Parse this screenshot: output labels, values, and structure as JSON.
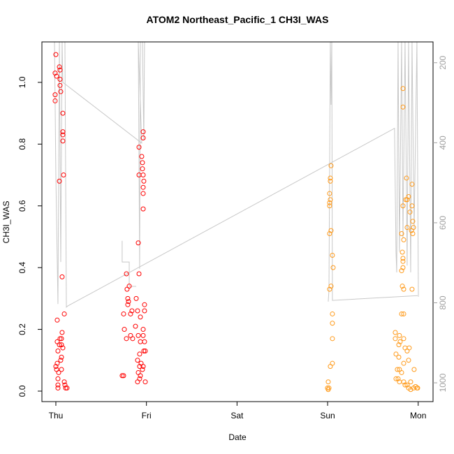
{
  "chart_data": {
    "type": "scatter",
    "title": "ATOM2 Northeast_Pacific_1 CH3I_WAS",
    "x_label": "Date",
    "y_label": "CH3I_WAS",
    "xlim": [
      -0.154,
      4.164
    ],
    "ylim": [
      -0.034,
      1.131
    ],
    "y2lim": [
      1047,
      148
    ],
    "xticks": [
      {
        "value": 0,
        "label": "Thu"
      },
      {
        "value": 1,
        "label": "Fri"
      },
      {
        "value": 2,
        "label": "Sat"
      },
      {
        "value": 3,
        "label": "Sun"
      },
      {
        "value": 4,
        "label": "Mon"
      }
    ],
    "yticks": [
      {
        "value": 0,
        "label": "0.0"
      },
      0.2,
      0.4,
      0.6,
      0.8,
      {
        "value": 1,
        "label": "1.0"
      }
    ],
    "y2ticks": [
      200,
      400,
      600,
      800,
      1000
    ],
    "y2_color": "#a0a0a0",
    "series": [
      {
        "color": "#ff0000",
        "x": [
          0,
          -0.008,
          0.008,
          -0.008,
          -0.008,
          0.039,
          0.046,
          0.046,
          0.046,
          0.054,
          0.077,
          0.077,
          0.077,
          0.077,
          0.039,
          0.085,
          0.069,
          0.093,
          0.015,
          0.015,
          0.046,
          0.062,
          0.069,
          0.039,
          0.062,
          0.077,
          0.023,
          0.062,
          0.054,
          0.015,
          0,
          0.008,
          0.031,
          0.062,
          0.023,
          0.023,
          0.023,
          0.093,
          0.1,
          0.108,
          0.123,
          0.779,
          0.81,
          0.786,
          0.794,
          0.802,
          0.794,
          0.84,
          0.825,
          0.748,
          0.756,
          0.779,
          0.825,
          0.848,
          0.879,
          0.918,
          0.948,
          0.956,
          0.956,
          0.964,
          0.918,
          0.964,
          0.964,
          0.971,
          0.964,
          0.964,
          0.964,
          0.91,
          0.918,
          0.887,
          0.902,
          0.933,
          0.964,
          0.979,
          0.979,
          0.91,
          0.933,
          0.964,
          0.979,
          0.987,
          0.971,
          0.925,
          0.902,
          0.941,
          0.925,
          0.964,
          0.956,
          0.91,
          0.933,
          0.925,
          0.902,
          0.987,
          0.732,
          0.748
        ],
        "values": [
          1.09,
          1.03,
          1.02,
          0.96,
          0.94,
          1.05,
          1.04,
          1.01,
          0.99,
          0.97,
          0.9,
          0.84,
          0.83,
          0.81,
          0.68,
          0.7,
          0.37,
          0.25,
          0.23,
          0.16,
          0.17,
          0.17,
          0.19,
          0.15,
          0.15,
          0.14,
          0.13,
          0.11,
          0.1,
          0.09,
          0.08,
          0.07,
          0.06,
          0.07,
          0.04,
          0.02,
          0.01,
          0.03,
          0.02,
          0.01,
          0.01,
          0.38,
          0.34,
          0.33,
          0.3,
          0.29,
          0.28,
          0.26,
          0.25,
          0.25,
          0.2,
          0.17,
          0.18,
          0.17,
          0.21,
          0.79,
          0.76,
          0.74,
          0.72,
          0.7,
          0.7,
          0.84,
          0.82,
          0.68,
          0.66,
          0.64,
          0.59,
          0.48,
          0.38,
          0.3,
          0.26,
          0.24,
          0.2,
          0.28,
          0.26,
          0.18,
          0.16,
          0.18,
          0.16,
          0.13,
          0.13,
          0.12,
          0.1,
          0.09,
          0.08,
          0.08,
          0.07,
          0.06,
          0.05,
          0.04,
          0.03,
          0.03,
          0.05,
          0.05
        ]
      },
      {
        "color": "#ff9a1a",
        "x": [
          3.038,
          3.03,
          3.03,
          3.022,
          3.03,
          3.022,
          3.022,
          3.038,
          3.022,
          3.053,
          3.061,
          3.038,
          3.022,
          3.053,
          3.053,
          3.053,
          3.053,
          3.03,
          3.007,
          2.999,
          3.007,
          3.015,
          3.832,
          3.832,
          3.871,
          3.932,
          3.894,
          3.863,
          3.878,
          3.832,
          3.909,
          3.932,
          3.94,
          3.948,
          3.925,
          3.94,
          3.817,
          3.878,
          3.84,
          3.825,
          3.832,
          3.832,
          3.832,
          3.817,
          3.825,
          3.84,
          3.932,
          3.817,
          3.84,
          3.747,
          3.793,
          3.747,
          3.801,
          3.786,
          3.84,
          3.878,
          3.855,
          3.901,
          3.894,
          3.84,
          3.786,
          3.755,
          3.77,
          3.793,
          3.817,
          3.755,
          3.778,
          3.793,
          3.84,
          3.878,
          3.917,
          3.955,
          3.855,
          3.894,
          3.948,
          3.971,
          3.986,
          3.994,
          3.917
        ],
        "values": [
          0.73,
          0.69,
          0.68,
          0.64,
          0.62,
          0.61,
          0.6,
          0.52,
          0.51,
          0.44,
          0.4,
          0.34,
          0.33,
          0.25,
          0.22,
          0.17,
          0.09,
          0.08,
          0.03,
          0.01,
          0.005,
          0.01,
          0.98,
          0.92,
          0.69,
          0.67,
          0.63,
          0.62,
          0.62,
          0.6,
          0.58,
          0.6,
          0.55,
          0.53,
          0.52,
          0.51,
          0.51,
          0.53,
          0.49,
          0.45,
          0.43,
          0.42,
          0.4,
          0.39,
          0.34,
          0.33,
          0.33,
          0.25,
          0.25,
          0.19,
          0.18,
          0.17,
          0.16,
          0.15,
          0.17,
          0.13,
          0.14,
          0.14,
          0.1,
          0.09,
          0.11,
          0.12,
          0.07,
          0.07,
          0.06,
          0.04,
          0.04,
          0.03,
          0.03,
          0.02,
          0.03,
          0.07,
          0.02,
          0.01,
          0.01,
          0.015,
          0.01,
          0.01,
          0.005
        ]
      },
      {
        "type": "line",
        "axis": "y2",
        "color": "#c8c8c8",
        "x": [
          -0.015,
          0,
          0.023,
          0.039,
          0.054,
          0.069,
          0.077,
          0.948,
          0.91,
          0.925,
          0.933,
          0.956,
          0.971,
          0.979,
          null,
          0.732,
          0.732,
          0.81,
          0.81,
          0.887,
          null,
          0.1,
          0.116,
          0.131,
          3.739,
          3.755,
          3.763,
          3.778,
          3.793,
          3.817,
          3.832,
          3.855,
          3.878,
          3.894,
          3.917,
          3.932,
          3.955,
          3.986,
          4.002,
          null,
          3.007,
          3.015,
          3.03,
          3.038,
          3.046,
          3.053,
          3.994
        ],
        "values": [
          148,
          480,
          803,
          148,
          698,
          148,
          249,
          401,
          148,
          715,
          148,
          148,
          392,
          148,
          null,
          645,
          698,
          698,
          759,
          759,
          null,
          148,
          811,
          808,
          364,
          672,
          724,
          148,
          672,
          148,
          637,
          148,
          707,
          148,
          724,
          148,
          619,
          148,
          785,
          null,
          797,
          768,
          148,
          305,
          148,
          794,
          782
        ]
      }
    ]
  }
}
